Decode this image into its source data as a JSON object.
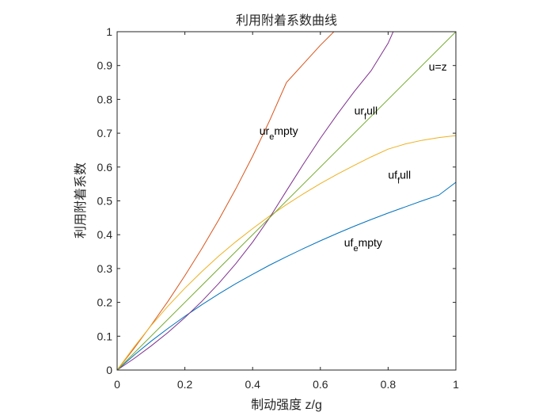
{
  "chart_data": {
    "type": "line",
    "title": "利用附着系数曲线",
    "xlabel": "制动强度 z/g",
    "ylabel": "利用附着系数",
    "xlim": [
      0,
      1
    ],
    "ylim": [
      0,
      1
    ],
    "xticks": [
      "0",
      "0.2",
      "0.4",
      "0.6",
      "0.8",
      "1"
    ],
    "yticks": [
      "0",
      "0.1",
      "0.2",
      "0.3",
      "0.4",
      "0.5",
      "0.6",
      "0.7",
      "0.8",
      "0.9",
      "1"
    ],
    "grid": false,
    "series": [
      {
        "id": "uf_empty",
        "color": "#0072BD",
        "x": [
          0,
          0.05,
          0.1,
          0.15,
          0.2,
          0.25,
          0.3,
          0.35,
          0.4,
          0.45,
          0.5,
          0.55,
          0.6,
          0.65,
          0.7,
          0.75,
          0.8,
          0.85,
          0.9,
          0.95,
          1.0
        ],
        "y": [
          0,
          0.044,
          0.085,
          0.123,
          0.159,
          0.193,
          0.225,
          0.255,
          0.283,
          0.31,
          0.335,
          0.359,
          0.382,
          0.404,
          0.425,
          0.445,
          0.464,
          0.482,
          0.5,
          0.517,
          0.555
        ]
      },
      {
        "id": "ur_empty",
        "color": "#D95319",
        "x": [
          0,
          0.05,
          0.1,
          0.15,
          0.2,
          0.25,
          0.3,
          0.35,
          0.4,
          0.45,
          0.5,
          0.55,
          0.6,
          0.64
        ],
        "y": [
          0,
          0.064,
          0.132,
          0.203,
          0.279,
          0.359,
          0.444,
          0.535,
          0.632,
          0.737,
          0.85,
          0.905,
          0.96,
          1.0
        ]
      },
      {
        "id": "uf_full",
        "color": "#EDB120",
        "x": [
          0,
          0.05,
          0.1,
          0.15,
          0.2,
          0.25,
          0.3,
          0.35,
          0.4,
          0.45,
          0.5,
          0.55,
          0.6,
          0.65,
          0.7,
          0.75,
          0.8,
          0.85,
          0.9,
          0.95,
          1.0
        ],
        "y": [
          0,
          0.068,
          0.131,
          0.189,
          0.242,
          0.291,
          0.337,
          0.379,
          0.418,
          0.455,
          0.489,
          0.521,
          0.551,
          0.579,
          0.605,
          0.63,
          0.653,
          0.668,
          0.679,
          0.687,
          0.693
        ]
      },
      {
        "id": "ur_full",
        "color": "#7E2F8E",
        "x": [
          0,
          0.05,
          0.1,
          0.15,
          0.2,
          0.25,
          0.3,
          0.35,
          0.4,
          0.45,
          0.5,
          0.55,
          0.6,
          0.65,
          0.7,
          0.75,
          0.8,
          0.815
        ],
        "y": [
          0,
          0.034,
          0.071,
          0.111,
          0.155,
          0.203,
          0.256,
          0.314,
          0.378,
          0.45,
          0.53,
          0.609,
          0.685,
          0.756,
          0.823,
          0.885,
          0.966,
          1.0
        ]
      },
      {
        "id": "u_eq_z",
        "color": "#77AC30",
        "x": [
          0,
          1
        ],
        "y": [
          0,
          1
        ]
      }
    ],
    "annotations": [
      {
        "id": "ur_empty",
        "parts": [
          [
            "ur",
            false
          ],
          [
            "e",
            true
          ],
          [
            "mpty",
            false
          ]
        ],
        "x": 0.42,
        "y": 0.695
      },
      {
        "id": "ur_full",
        "parts": [
          [
            "ur",
            false
          ],
          [
            "f",
            true
          ],
          [
            "ull",
            false
          ]
        ],
        "x": 0.7,
        "y": 0.755
      },
      {
        "id": "u_eq_z",
        "parts": [
          [
            "u=z",
            false
          ]
        ],
        "x": 0.92,
        "y": 0.885
      },
      {
        "id": "uf_full",
        "parts": [
          [
            "uf",
            false
          ],
          [
            "f",
            true
          ],
          [
            "ull",
            false
          ]
        ],
        "x": 0.8,
        "y": 0.565
      },
      {
        "id": "uf_empty",
        "parts": [
          [
            "uf",
            false
          ],
          [
            "e",
            true
          ],
          [
            "mpty",
            false
          ]
        ],
        "x": 0.67,
        "y": 0.365
      }
    ]
  }
}
